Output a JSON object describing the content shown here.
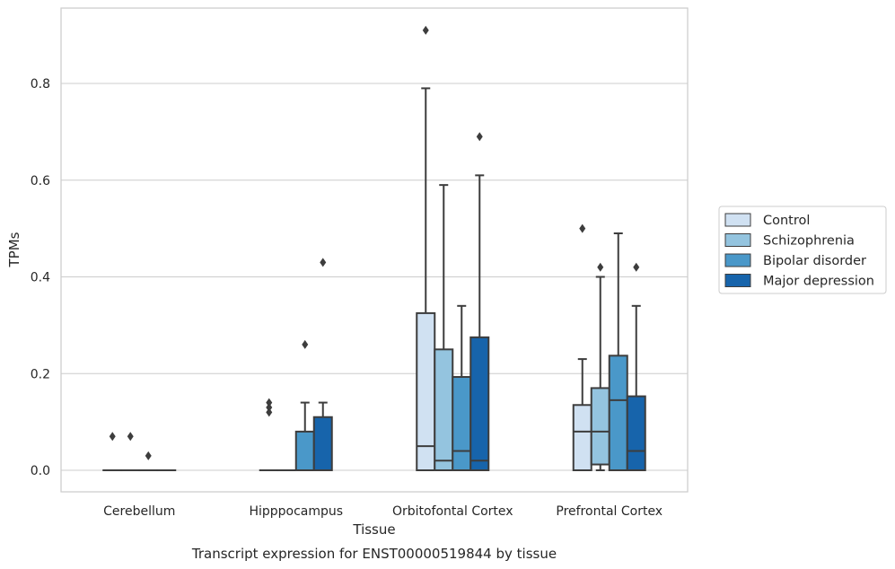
{
  "chart_data": {
    "type": "boxplot",
    "caption": "Transcript expression for ENST00000519844 by tissue",
    "xlabel": "Tissue",
    "ylabel": "TPMs",
    "ylim": [
      -0.045,
      0.955
    ],
    "yticks": [
      0.0,
      0.2,
      0.4,
      0.6,
      0.8
    ],
    "ytick_labels": [
      "0.0",
      "0.2",
      "0.4",
      "0.6",
      "0.8"
    ],
    "grid": "horizontal",
    "legend_position": "right",
    "categories": [
      "Cerebellum",
      "Hipppocampus",
      "Orbitofontal Cortex",
      "Prefrontal Cortex"
    ],
    "series": [
      {
        "name": "Control",
        "color": "#d0e1f2",
        "boxes": [
          {
            "min": 0.0,
            "q1": 0.0,
            "median": 0.0,
            "q3": 0.0,
            "max": 0.0,
            "outliers": [
              0.07
            ]
          },
          {
            "min": 0.0,
            "q1": 0.0,
            "median": 0.0,
            "q3": 0.0,
            "max": 0.0,
            "outliers": [
              0.12,
              0.13,
              0.14
            ]
          },
          {
            "min": 0.0,
            "q1": 0.0,
            "median": 0.05,
            "q3": 0.325,
            "max": 0.79,
            "outliers": [
              0.91
            ]
          },
          {
            "min": 0.0,
            "q1": 0.0,
            "median": 0.08,
            "q3": 0.135,
            "max": 0.23,
            "outliers": [
              0.5
            ]
          }
        ]
      },
      {
        "name": "Schizophrenia",
        "color": "#94c4df",
        "boxes": [
          {
            "min": 0.0,
            "q1": 0.0,
            "median": 0.0,
            "q3": 0.0,
            "max": 0.0,
            "outliers": [
              0.07
            ]
          },
          {
            "min": 0.0,
            "q1": 0.0,
            "median": 0.0,
            "q3": 0.0,
            "max": 0.0,
            "outliers": []
          },
          {
            "min": 0.0,
            "q1": 0.0,
            "median": 0.02,
            "q3": 0.25,
            "max": 0.59,
            "outliers": []
          },
          {
            "min": 0.0,
            "q1": 0.012,
            "median": 0.08,
            "q3": 0.17,
            "max": 0.4,
            "outliers": [
              0.42
            ]
          }
        ]
      },
      {
        "name": "Bipolar disorder",
        "color": "#4a98c9",
        "boxes": [
          {
            "min": 0.0,
            "q1": 0.0,
            "median": 0.0,
            "q3": 0.0,
            "max": 0.0,
            "outliers": [
              0.03
            ]
          },
          {
            "min": 0.0,
            "q1": 0.0,
            "median": 0.0,
            "q3": 0.08,
            "max": 0.14,
            "outliers": [
              0.26
            ]
          },
          {
            "min": 0.0,
            "q1": 0.0,
            "median": 0.04,
            "q3": 0.193,
            "max": 0.34,
            "outliers": []
          },
          {
            "min": 0.0,
            "q1": 0.0,
            "median": 0.145,
            "q3": 0.237,
            "max": 0.49,
            "outliers": []
          }
        ]
      },
      {
        "name": "Major depression",
        "color": "#1764ab",
        "boxes": [
          {
            "min": 0.0,
            "q1": 0.0,
            "median": 0.0,
            "q3": 0.0,
            "max": 0.0,
            "outliers": []
          },
          {
            "min": 0.0,
            "q1": 0.0,
            "median": 0.0,
            "q3": 0.11,
            "max": 0.14,
            "outliers": [
              0.43
            ]
          },
          {
            "min": 0.0,
            "q1": 0.0,
            "median": 0.02,
            "q3": 0.275,
            "max": 0.61,
            "outliers": [
              0.69
            ]
          },
          {
            "min": 0.0,
            "q1": 0.0,
            "median": 0.04,
            "q3": 0.153,
            "max": 0.34,
            "outliers": [
              0.42
            ]
          }
        ]
      }
    ]
  }
}
